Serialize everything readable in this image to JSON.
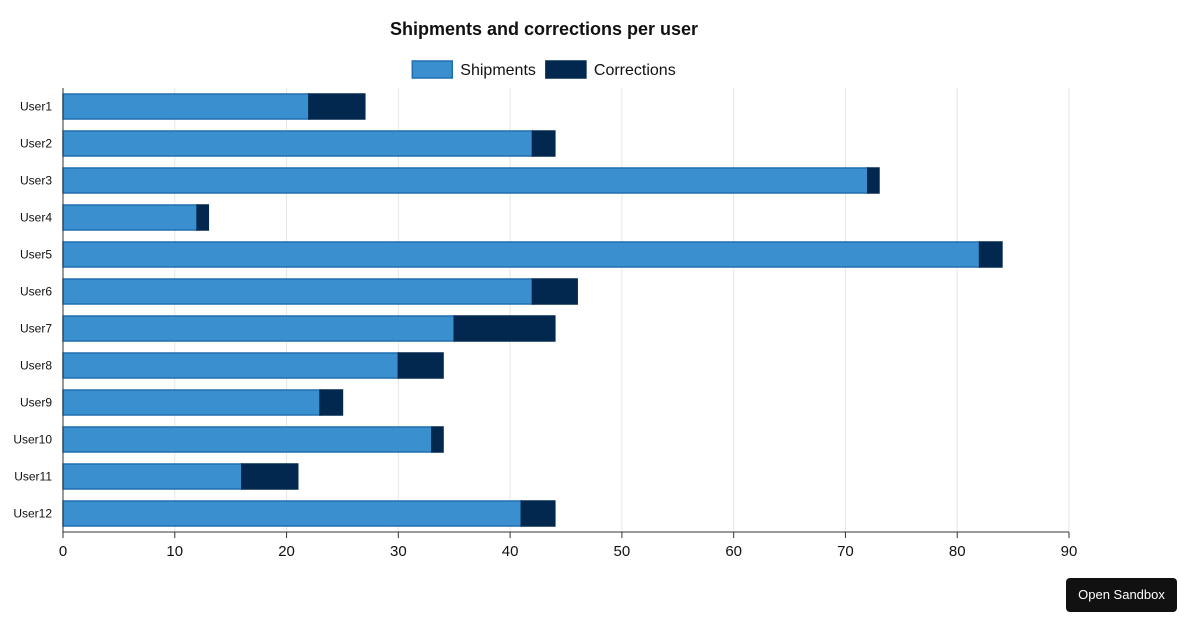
{
  "chart_data": {
    "type": "bar",
    "orientation": "horizontal",
    "stacked": true,
    "title": "Shipments and corrections per user",
    "xlabel": "",
    "ylabel": "",
    "categories": [
      "User1",
      "User2",
      "User3",
      "User4",
      "User5",
      "User6",
      "User7",
      "User8",
      "User9",
      "User10",
      "User11",
      "User12"
    ],
    "series": [
      {
        "name": "Shipments",
        "color": "#3a8fcf",
        "border_color": "#1f6eb0",
        "values": [
          22,
          42,
          72,
          12,
          82,
          42,
          35,
          30,
          23,
          33,
          16,
          41
        ]
      },
      {
        "name": "Corrections",
        "color": "#02284f",
        "border_color": "#02284f",
        "values": [
          5,
          2,
          1,
          1,
          2,
          4,
          9,
          4,
          2,
          1,
          5,
          3
        ]
      }
    ],
    "xlim": [
      0,
      90
    ],
    "x_ticks": [
      0,
      10,
      20,
      30,
      40,
      50,
      60,
      70,
      80,
      90
    ],
    "grid": true,
    "legend_position": "top-center"
  },
  "ui": {
    "sandbox_button_label": "Open Sandbox"
  }
}
